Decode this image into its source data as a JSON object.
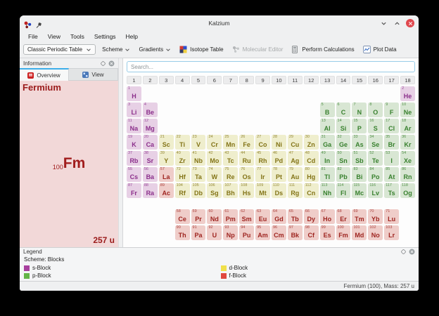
{
  "window": {
    "title": "Kalzium"
  },
  "menu": {
    "items": [
      "File",
      "View",
      "Tools",
      "Settings",
      "Help"
    ]
  },
  "toolbar": {
    "table_selector": "Classic Periodic Table",
    "scheme": "Scheme",
    "gradients": "Gradients",
    "isotope_table": "Isotope Table",
    "molecular_editor": "Molecular Editor",
    "perform_calculations": "Perform Calculations",
    "plot_data": "Plot Data"
  },
  "sidebar": {
    "dock_title": "Information",
    "tabs": [
      {
        "label": "Overview",
        "active": true
      },
      {
        "label": "View",
        "active": false
      }
    ],
    "element_name": "Fermium",
    "atomic_number": "100",
    "symbol": "Fm",
    "mass": "257 u"
  },
  "search": {
    "placeholder": "Search..."
  },
  "table": {
    "group_numbers": [
      "1",
      "2",
      "3",
      "4",
      "5",
      "6",
      "7",
      "8",
      "9",
      "10",
      "11",
      "12",
      "13",
      "14",
      "15",
      "16",
      "17",
      "18"
    ],
    "elements": [
      [
        1,
        "H",
        "s",
        1,
        1
      ],
      [
        2,
        "He",
        "s",
        1,
        18
      ],
      [
        3,
        "Li",
        "s",
        2,
        1
      ],
      [
        4,
        "Be",
        "s",
        2,
        2
      ],
      [
        5,
        "B",
        "p",
        2,
        13
      ],
      [
        6,
        "C",
        "p",
        2,
        14
      ],
      [
        7,
        "N",
        "p",
        2,
        15
      ],
      [
        8,
        "O",
        "p",
        2,
        16
      ],
      [
        9,
        "F",
        "p",
        2,
        17
      ],
      [
        10,
        "Ne",
        "p",
        2,
        18
      ],
      [
        11,
        "Na",
        "s",
        3,
        1
      ],
      [
        12,
        "Mg",
        "s",
        3,
        2
      ],
      [
        13,
        "Al",
        "p",
        3,
        13
      ],
      [
        14,
        "Si",
        "p",
        3,
        14
      ],
      [
        15,
        "P",
        "p",
        3,
        15
      ],
      [
        16,
        "S",
        "p",
        3,
        16
      ],
      [
        17,
        "Cl",
        "p",
        3,
        17
      ],
      [
        18,
        "Ar",
        "p",
        3,
        18
      ],
      [
        19,
        "K",
        "s",
        4,
        1
      ],
      [
        20,
        "Ca",
        "s",
        4,
        2
      ],
      [
        21,
        "Sc",
        "d",
        4,
        3
      ],
      [
        22,
        "Ti",
        "d",
        4,
        4
      ],
      [
        23,
        "V",
        "d",
        4,
        5
      ],
      [
        24,
        "Cr",
        "d",
        4,
        6
      ],
      [
        25,
        "Mn",
        "d",
        4,
        7
      ],
      [
        26,
        "Fe",
        "d",
        4,
        8
      ],
      [
        27,
        "Co",
        "d",
        4,
        9
      ],
      [
        28,
        "Ni",
        "d",
        4,
        10
      ],
      [
        29,
        "Cu",
        "d",
        4,
        11
      ],
      [
        30,
        "Zn",
        "d",
        4,
        12
      ],
      [
        31,
        "Ga",
        "p",
        4,
        13
      ],
      [
        32,
        "Ge",
        "p",
        4,
        14
      ],
      [
        33,
        "As",
        "p",
        4,
        15
      ],
      [
        34,
        "Se",
        "p",
        4,
        16
      ],
      [
        35,
        "Br",
        "p",
        4,
        17
      ],
      [
        36,
        "Kr",
        "p",
        4,
        18
      ],
      [
        37,
        "Rb",
        "s",
        5,
        1
      ],
      [
        38,
        "Sr",
        "s",
        5,
        2
      ],
      [
        39,
        "Y",
        "d",
        5,
        3
      ],
      [
        40,
        "Zr",
        "d",
        5,
        4
      ],
      [
        41,
        "Nb",
        "d",
        5,
        5
      ],
      [
        42,
        "Mo",
        "d",
        5,
        6
      ],
      [
        43,
        "Tc",
        "d",
        5,
        7
      ],
      [
        44,
        "Ru",
        "d",
        5,
        8
      ],
      [
        45,
        "Rh",
        "d",
        5,
        9
      ],
      [
        46,
        "Pd",
        "d",
        5,
        10
      ],
      [
        47,
        "Ag",
        "d",
        5,
        11
      ],
      [
        48,
        "Cd",
        "d",
        5,
        12
      ],
      [
        49,
        "In",
        "p",
        5,
        13
      ],
      [
        50,
        "Sn",
        "p",
        5,
        14
      ],
      [
        51,
        "Sb",
        "p",
        5,
        15
      ],
      [
        52,
        "Te",
        "p",
        5,
        16
      ],
      [
        53,
        "I",
        "p",
        5,
        17
      ],
      [
        54,
        "Xe",
        "p",
        5,
        18
      ],
      [
        55,
        "Cs",
        "s",
        6,
        1
      ],
      [
        56,
        "Ba",
        "s",
        6,
        2
      ],
      [
        57,
        "La",
        "f",
        6,
        3
      ],
      [
        72,
        "Hf",
        "d",
        6,
        4
      ],
      [
        73,
        "Ta",
        "d",
        6,
        5
      ],
      [
        74,
        "W",
        "d",
        6,
        6
      ],
      [
        75,
        "Re",
        "d",
        6,
        7
      ],
      [
        76,
        "Os",
        "d",
        6,
        8
      ],
      [
        77,
        "Ir",
        "d",
        6,
        9
      ],
      [
        78,
        "Pt",
        "d",
        6,
        10
      ],
      [
        79,
        "Au",
        "d",
        6,
        11
      ],
      [
        80,
        "Hg",
        "d",
        6,
        12
      ],
      [
        81,
        "Tl",
        "p",
        6,
        13
      ],
      [
        82,
        "Pb",
        "p",
        6,
        14
      ],
      [
        83,
        "Bi",
        "p",
        6,
        15
      ],
      [
        84,
        "Po",
        "p",
        6,
        16
      ],
      [
        85,
        "At",
        "p",
        6,
        17
      ],
      [
        86,
        "Rn",
        "p",
        6,
        18
      ],
      [
        87,
        "Fr",
        "s",
        7,
        1
      ],
      [
        88,
        "Ra",
        "s",
        7,
        2
      ],
      [
        89,
        "Ac",
        "f",
        7,
        3
      ],
      [
        104,
        "Rf",
        "d",
        7,
        4
      ],
      [
        105,
        "Db",
        "d",
        7,
        5
      ],
      [
        106,
        "Sg",
        "d",
        7,
        6
      ],
      [
        107,
        "Bh",
        "d",
        7,
        7
      ],
      [
        108,
        "Hs",
        "d",
        7,
        8
      ],
      [
        109,
        "Mt",
        "d",
        7,
        9
      ],
      [
        110,
        "Ds",
        "d",
        7,
        10
      ],
      [
        111,
        "Rg",
        "d",
        7,
        11
      ],
      [
        112,
        "Cn",
        "d",
        7,
        12
      ],
      [
        113,
        "Nh",
        "p",
        7,
        13
      ],
      [
        114,
        "Fl",
        "p",
        7,
        14
      ],
      [
        115,
        "Mc",
        "p",
        7,
        15
      ],
      [
        116,
        "Lv",
        "p",
        7,
        16
      ],
      [
        117,
        "Ts",
        "p",
        7,
        17
      ],
      [
        118,
        "Og",
        "p",
        7,
        18
      ],
      [
        58,
        "Ce",
        "f",
        8,
        4
      ],
      [
        59,
        "Pr",
        "f",
        8,
        5
      ],
      [
        60,
        "Nd",
        "f",
        8,
        6
      ],
      [
        61,
        "Pm",
        "f",
        8,
        7
      ],
      [
        62,
        "Sm",
        "f",
        8,
        8
      ],
      [
        63,
        "Eu",
        "f",
        8,
        9
      ],
      [
        64,
        "Gd",
        "f",
        8,
        10
      ],
      [
        65,
        "Tb",
        "f",
        8,
        11
      ],
      [
        66,
        "Dy",
        "f",
        8,
        12
      ],
      [
        67,
        "Ho",
        "f",
        8,
        13
      ],
      [
        68,
        "Er",
        "f",
        8,
        14
      ],
      [
        69,
        "Tm",
        "f",
        8,
        15
      ],
      [
        70,
        "Yb",
        "f",
        8,
        16
      ],
      [
        71,
        "Lu",
        "f",
        8,
        17
      ],
      [
        90,
        "Th",
        "f",
        9,
        4
      ],
      [
        91,
        "Pa",
        "f",
        9,
        5
      ],
      [
        92,
        "U",
        "f",
        9,
        6
      ],
      [
        93,
        "Np",
        "f",
        9,
        7
      ],
      [
        94,
        "Pu",
        "f",
        9,
        8
      ],
      [
        95,
        "Am",
        "f",
        9,
        9
      ],
      [
        96,
        "Cm",
        "f",
        9,
        10
      ],
      [
        97,
        "Bk",
        "f",
        9,
        11
      ],
      [
        98,
        "Cf",
        "f",
        9,
        12
      ],
      [
        99,
        "Es",
        "f",
        9,
        13
      ],
      [
        100,
        "Fm",
        "f",
        9,
        14
      ],
      [
        101,
        "Md",
        "f",
        9,
        15
      ],
      [
        102,
        "No",
        "f",
        9,
        16
      ],
      [
        103,
        "Lr",
        "f",
        9,
        17
      ]
    ]
  },
  "blocks": {
    "s": {
      "bg": "#e7d0e5",
      "fg": "#8b2f8b"
    },
    "p": {
      "bg": "#d8e6d3",
      "fg": "#39812f"
    },
    "d": {
      "bg": "#efeecd",
      "fg": "#837417"
    },
    "f": {
      "bg": "#efcdc9",
      "fg": "#9e2520"
    }
  },
  "legend": {
    "title": "Legend",
    "scheme_label": "Scheme: Blocks",
    "items": [
      {
        "label": "s-Block",
        "color": "#a8409e"
      },
      {
        "label": "p-Block",
        "color": "#64b547"
      },
      {
        "label": "d-Block",
        "color": "#f0e04b"
      },
      {
        "label": "f-Block",
        "color": "#e0483e"
      }
    ]
  },
  "statusbar": {
    "text": "Fermium (100), Mass: 257 u"
  }
}
